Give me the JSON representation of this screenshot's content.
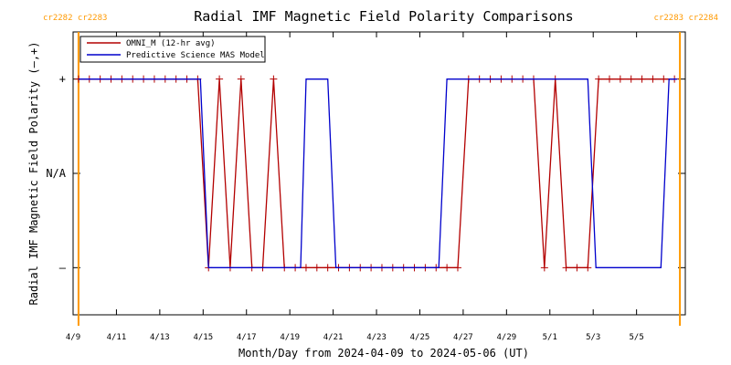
{
  "chart_data": {
    "type": "line",
    "title": "Radial IMF Magnetic Field Polarity Comparisons",
    "xlabel": "Month/Day from 2024-04-09 to 2024-05-06 (UT)",
    "ylabel": "Radial IMF Magnetic Field Polarity (–,+)",
    "xlim": [
      "2024-04-09T00:00",
      "2024-05-07T06:00"
    ],
    "ylim": [
      -1.5,
      1.5
    ],
    "x_ticks": [
      {
        "date": "2024-04-09",
        "label": "4/9"
      },
      {
        "date": "2024-04-11",
        "label": "4/11"
      },
      {
        "date": "2024-04-13",
        "label": "4/13"
      },
      {
        "date": "2024-04-15",
        "label": "4/15"
      },
      {
        "date": "2024-04-17",
        "label": "4/17"
      },
      {
        "date": "2024-04-19",
        "label": "4/19"
      },
      {
        "date": "2024-04-21",
        "label": "4/21"
      },
      {
        "date": "2024-04-23",
        "label": "4/23"
      },
      {
        "date": "2024-04-25",
        "label": "4/25"
      },
      {
        "date": "2024-04-27",
        "label": "4/27"
      },
      {
        "date": "2024-04-29",
        "label": "4/29"
      },
      {
        "date": "2024-05-01",
        "label": "5/1"
      },
      {
        "date": "2024-05-03",
        "label": "5/3"
      },
      {
        "date": "2024-05-05",
        "label": "5/5"
      }
    ],
    "y_ticks": [
      {
        "value": 1,
        "label": "+"
      },
      {
        "value": 0,
        "label": "N/A"
      },
      {
        "value": -1,
        "label": "–"
      }
    ],
    "carrington_markers": [
      {
        "date": "2024-04-09T06:00",
        "label": "cr2282 cr2283",
        "color": "#ff9900",
        "label_side": "left"
      },
      {
        "date": "2024-05-07T00:00",
        "label": "cr2283 cr2284",
        "color": "#ff9900",
        "label_side": "right"
      }
    ],
    "series": [
      {
        "name": "OMNI_M (12-hr avg)",
        "color": "#b30000",
        "marker": "plus",
        "points": [
          [
            "2024-04-09T06:00",
            1
          ],
          [
            "2024-04-09T18:00",
            1
          ],
          [
            "2024-04-10T06:00",
            1
          ],
          [
            "2024-04-10T18:00",
            1
          ],
          [
            "2024-04-11T06:00",
            1
          ],
          [
            "2024-04-11T18:00",
            1
          ],
          [
            "2024-04-12T06:00",
            1
          ],
          [
            "2024-04-12T18:00",
            1
          ],
          [
            "2024-04-13T06:00",
            1
          ],
          [
            "2024-04-13T18:00",
            1
          ],
          [
            "2024-04-14T06:00",
            1
          ],
          [
            "2024-04-14T18:00",
            1
          ],
          [
            "2024-04-15T06:00",
            -1
          ],
          [
            "2024-04-15T18:00",
            1
          ],
          [
            "2024-04-16T06:00",
            -1
          ],
          [
            "2024-04-16T18:00",
            1
          ],
          [
            "2024-04-17T06:00",
            -1
          ],
          [
            "2024-04-17T18:00",
            -1
          ],
          [
            "2024-04-18T06:00",
            1
          ],
          [
            "2024-04-18T18:00",
            -1
          ],
          [
            "2024-04-19T06:00",
            -1
          ],
          [
            "2024-04-19T18:00",
            -1
          ],
          [
            "2024-04-20T06:00",
            -1
          ],
          [
            "2024-04-20T18:00",
            -1
          ],
          [
            "2024-04-21T06:00",
            -1
          ],
          [
            "2024-04-21T18:00",
            -1
          ],
          [
            "2024-04-22T06:00",
            -1
          ],
          [
            "2024-04-22T18:00",
            -1
          ],
          [
            "2024-04-23T06:00",
            -1
          ],
          [
            "2024-04-23T18:00",
            -1
          ],
          [
            "2024-04-24T06:00",
            -1
          ],
          [
            "2024-04-24T18:00",
            -1
          ],
          [
            "2024-04-25T06:00",
            -1
          ],
          [
            "2024-04-25T18:00",
            -1
          ],
          [
            "2024-04-26T06:00",
            -1
          ],
          [
            "2024-04-26T18:00",
            -1
          ],
          [
            "2024-04-27T06:00",
            1
          ],
          [
            "2024-04-27T18:00",
            1
          ],
          [
            "2024-04-28T06:00",
            1
          ],
          [
            "2024-04-28T18:00",
            1
          ],
          [
            "2024-04-29T06:00",
            1
          ],
          [
            "2024-04-29T18:00",
            1
          ],
          [
            "2024-04-30T06:00",
            1
          ],
          [
            "2024-04-30T18:00",
            -1
          ],
          [
            "2024-05-01T06:00",
            1
          ],
          [
            "2024-05-01T18:00",
            -1
          ],
          [
            "2024-05-02T06:00",
            -1
          ],
          [
            "2024-05-02T18:00",
            -1
          ],
          [
            "2024-05-03T06:00",
            1
          ],
          [
            "2024-05-03T18:00",
            1
          ],
          [
            "2024-05-04T06:00",
            1
          ],
          [
            "2024-05-04T18:00",
            1
          ],
          [
            "2024-05-05T06:00",
            1
          ],
          [
            "2024-05-05T18:00",
            1
          ],
          [
            "2024-05-06T06:00",
            1
          ],
          [
            "2024-05-06T18:00",
            1
          ]
        ]
      },
      {
        "name": "Predictive Science MAS Model",
        "color": "#0000cc",
        "marker": "none",
        "points": [
          [
            "2024-04-09T06:00",
            1
          ],
          [
            "2024-04-14T21:00",
            1
          ],
          [
            "2024-04-15T06:00",
            -1
          ],
          [
            "2024-04-19T12:00",
            -1
          ],
          [
            "2024-04-19T18:00",
            1
          ],
          [
            "2024-04-20T18:00",
            1
          ],
          [
            "2024-04-21T03:00",
            -1
          ],
          [
            "2024-04-25T21:00",
            -1
          ],
          [
            "2024-04-26T06:00",
            1
          ],
          [
            "2024-05-02T18:00",
            1
          ],
          [
            "2024-05-03T03:00",
            -1
          ],
          [
            "2024-05-06T03:00",
            -1
          ],
          [
            "2024-05-06T12:00",
            1
          ],
          [
            "2024-05-06T21:00",
            1
          ]
        ]
      }
    ]
  }
}
